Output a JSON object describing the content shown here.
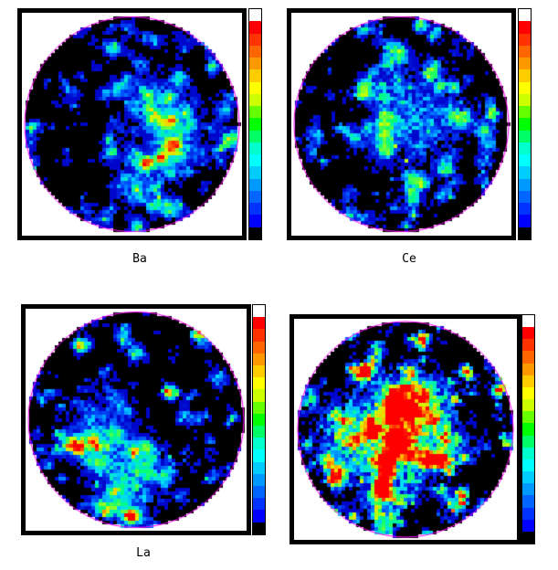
{
  "figure": {
    "panels": [
      {
        "label": "Ba",
        "pattern": "ba"
      },
      {
        "label": "Ce",
        "pattern": "ce"
      },
      {
        "label": "La",
        "pattern": "la"
      },
      {
        "label": "",
        "pattern": "other"
      }
    ],
    "colorbar_colors": [
      "#ffffff",
      "#ff0000",
      "#ff3300",
      "#ff6600",
      "#ff9900",
      "#ffcc00",
      "#ffff00",
      "#ccff00",
      "#66ff00",
      "#00ff00",
      "#00ff66",
      "#00ffcc",
      "#00ffff",
      "#00ccff",
      "#0099ff",
      "#0066ff",
      "#0033ff",
      "#0000ff",
      "#000000"
    ],
    "circle_color": "#ff00ff"
  }
}
